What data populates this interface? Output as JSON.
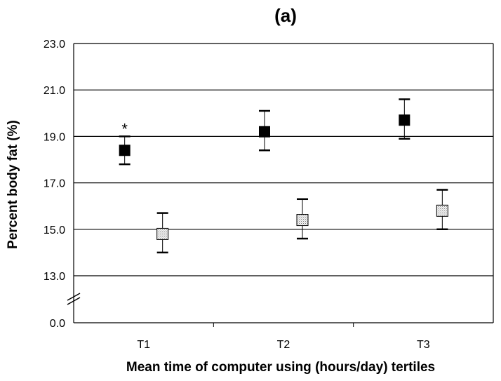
{
  "chart_data": {
    "type": "scatter",
    "panel_label": "(a)",
    "xlabel": "Mean time of  computer using (hours/day) tertiles",
    "ylabel": "Percent body fat (%)",
    "categories": [
      "T1",
      "T2",
      "T3"
    ],
    "y_ticks": [
      "0.0",
      "13.0",
      "15.0",
      "17.0",
      "19.0",
      "21.0",
      "23.0"
    ],
    "ylim": [
      11.0,
      23.0
    ],
    "axis_break": true,
    "grid": "horizontal",
    "legend": "none",
    "series": [
      {
        "marker": "filled-square",
        "color": "#000000",
        "values": [
          18.4,
          19.2,
          19.7
        ],
        "error_low": [
          17.8,
          18.4,
          18.9
        ],
        "error_high": [
          19.0,
          20.1,
          20.6
        ]
      },
      {
        "marker": "dotted-square",
        "color": "#cccccc",
        "values": [
          14.8,
          15.4,
          15.8
        ],
        "error_low": [
          14.0,
          14.6,
          15.0
        ],
        "error_high": [
          15.7,
          16.3,
          16.7
        ]
      }
    ],
    "annotations": [
      {
        "text": "*",
        "category": "T1",
        "series": 0
      }
    ]
  }
}
